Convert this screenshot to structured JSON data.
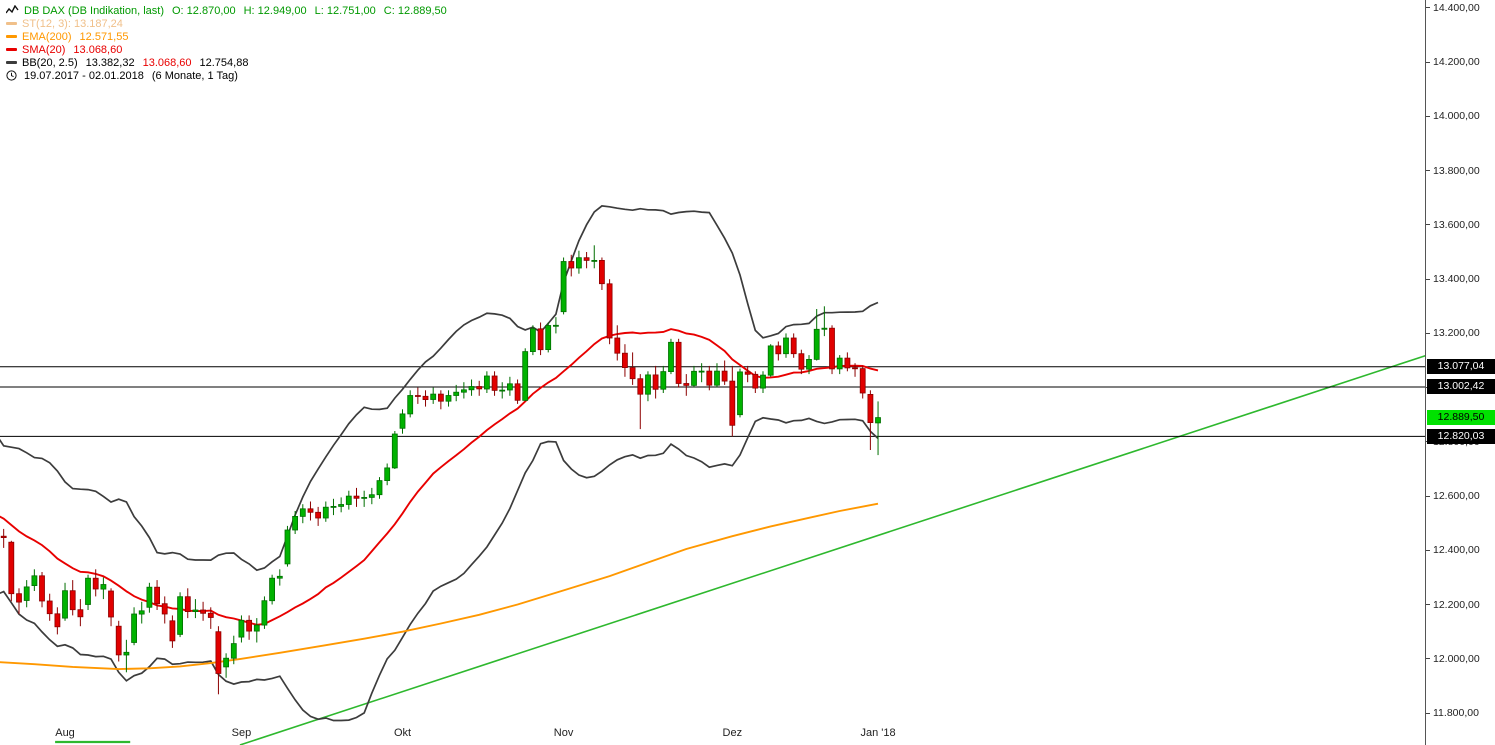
{
  "legend": {
    "instrument": "DB DAX (DB Indikation, last)",
    "open": "O: 12.870,00",
    "high": "H: 12.949,00",
    "low": "L: 12.751,00",
    "close": "C: 12.889,50",
    "st": "ST(12, 3): 13.187,24",
    "ema_name": "EMA(200)",
    "ema_value": "12.571,55",
    "sma_name": "SMA(20)",
    "sma_value": "13.068,60",
    "bb_name": "BB(20, 2.5)",
    "bb_upper": "13.382,32",
    "bb_middle": "13.068,60",
    "bb_lower": "12.754,88",
    "period": "19.07.2017 - 02.01.2018",
    "period_detail": "(6 Monate, 1 Tag)"
  },
  "axis": {
    "y_ticks": [
      {
        "value": 14400,
        "label": "14.400,00"
      },
      {
        "value": 14200,
        "label": "14.200,00"
      },
      {
        "value": 14000,
        "label": "14.000,00"
      },
      {
        "value": 13800,
        "label": "13.800,00"
      },
      {
        "value": 13600,
        "label": "13.600,00"
      },
      {
        "value": 13400,
        "label": "13.400,00"
      },
      {
        "value": 13200,
        "label": "13.200,00"
      },
      {
        "value": 13000,
        "label": "13.000,00"
      },
      {
        "value": 12800,
        "label": "12.800,00"
      },
      {
        "value": 12600,
        "label": "12.600,00"
      },
      {
        "value": 12400,
        "label": "12.400,00"
      },
      {
        "value": 12200,
        "label": "12.200,00"
      },
      {
        "value": 12000,
        "label": "12.000,00"
      },
      {
        "value": 11800,
        "label": "11.800,00"
      }
    ],
    "x_ticks": [
      {
        "i": 9,
        "label": "Aug"
      },
      {
        "i": 32,
        "label": "Sep"
      },
      {
        "i": 53,
        "label": "Okt"
      },
      {
        "i": 74,
        "label": "Nov"
      },
      {
        "i": 96,
        "label": "Dez"
      },
      {
        "i": 115,
        "label": "Jan '18"
      }
    ],
    "price_labels": [
      {
        "value": 13077.04,
        "label": "13.077,04",
        "type": "line"
      },
      {
        "value": 13002.42,
        "label": "13.002,42",
        "type": "line"
      },
      {
        "value": 12889.5,
        "label": "12.889,50",
        "type": "last"
      },
      {
        "value": 12820.03,
        "label": "12.820,03",
        "type": "line"
      }
    ]
  },
  "chart_data": {
    "type": "candlestick",
    "instrument": "DB DAX (DB Indikation)",
    "period": "19.07.2017 - 02.01.2018 (6 Monate, 1 Tag)",
    "ylim": [
      11682,
      14429.5
    ],
    "last_price": 12889.5,
    "hlines": [
      13077.04,
      13002.42,
      12820.03
    ],
    "trendline": {
      "points": [
        [
          31.8,
          11682
        ],
        [
          186.6,
          13120
        ]
      ]
    },
    "trend_segment": {
      "points": [
        [
          7.7,
          11693
        ],
        [
          17.5,
          11693
        ]
      ]
    },
    "ema200_points": [
      [
        0,
        11988
      ],
      [
        5,
        11980
      ],
      [
        10,
        11970
      ],
      [
        16,
        11962
      ],
      [
        20,
        11965
      ],
      [
        24,
        11972
      ],
      [
        28,
        11984
      ],
      [
        32,
        12000
      ],
      [
        37,
        12022
      ],
      [
        43,
        12050
      ],
      [
        48,
        12074
      ],
      [
        53,
        12100
      ],
      [
        58,
        12130
      ],
      [
        63,
        12162
      ],
      [
        68,
        12200
      ],
      [
        74,
        12252
      ],
      [
        80,
        12305
      ],
      [
        85,
        12355
      ],
      [
        90,
        12405
      ],
      [
        96,
        12452
      ],
      [
        101,
        12488
      ],
      [
        106,
        12520
      ],
      [
        110,
        12545
      ],
      [
        115,
        12572
      ]
    ],
    "indicator_warmup_closes": [
      12820,
      12760,
      12700,
      12680,
      12640,
      12600,
      12560,
      12620,
      12660,
      12600,
      12540,
      12420,
      12330,
      12380,
      12450,
      12470,
      12390,
      12440,
      12520,
      12430
    ],
    "candles": [
      [
        12490,
        12510,
        12430,
        12452
      ],
      [
        12452,
        12479,
        12409,
        12447
      ],
      [
        12430,
        12435,
        12212,
        12240
      ],
      [
        12240,
        12260,
        12165,
        12209
      ],
      [
        12215,
        12290,
        12190,
        12265
      ],
      [
        12270,
        12330,
        12250,
        12306
      ],
      [
        12306,
        12320,
        12190,
        12213
      ],
      [
        12213,
        12240,
        12140,
        12166
      ],
      [
        12166,
        12190,
        12090,
        12118
      ],
      [
        12150,
        12280,
        12140,
        12251
      ],
      [
        12251,
        12290,
        12160,
        12181
      ],
      [
        12181,
        12220,
        12120,
        12155
      ],
      [
        12200,
        12310,
        12180,
        12297
      ],
      [
        12297,
        12330,
        12230,
        12257
      ],
      [
        12257,
        12300,
        12220,
        12274
      ],
      [
        12250,
        12260,
        12120,
        12154
      ],
      [
        12120,
        12140,
        11990,
        12014
      ],
      [
        12014,
        12070,
        11950,
        12024
      ],
      [
        12060,
        12190,
        12050,
        12165
      ],
      [
        12165,
        12210,
        12130,
        12177
      ],
      [
        12190,
        12280,
        12170,
        12264
      ],
      [
        12264,
        12290,
        12180,
        12203
      ],
      [
        12203,
        12230,
        12130,
        12165
      ],
      [
        12140,
        12160,
        12040,
        12066
      ],
      [
        12090,
        12245,
        12080,
        12229
      ],
      [
        12229,
        12260,
        12150,
        12174
      ],
      [
        12174,
        12220,
        12150,
        12180
      ],
      [
        12180,
        12210,
        12140,
        12168
      ],
      [
        12168,
        12190,
        12110,
        12152
      ],
      [
        12100,
        12120,
        11869,
        11946
      ],
      [
        11970,
        12020,
        11930,
        12002
      ],
      [
        12002,
        12085,
        11980,
        12056
      ],
      [
        12080,
        12160,
        12060,
        12142
      ],
      [
        12142,
        12160,
        12070,
        12102
      ],
      [
        12102,
        12150,
        12060,
        12124
      ],
      [
        12124,
        12230,
        12110,
        12214
      ],
      [
        12214,
        12310,
        12200,
        12297
      ],
      [
        12297,
        12330,
        12270,
        12304
      ],
      [
        12350,
        12490,
        12340,
        12475
      ],
      [
        12475,
        12545,
        12460,
        12525
      ],
      [
        12525,
        12570,
        12500,
        12553
      ],
      [
        12553,
        12580,
        12510,
        12540
      ],
      [
        12540,
        12560,
        12490,
        12519
      ],
      [
        12519,
        12580,
        12505,
        12559
      ],
      [
        12559,
        12590,
        12530,
        12562
      ],
      [
        12562,
        12595,
        12540,
        12569
      ],
      [
        12569,
        12620,
        12550,
        12600
      ],
      [
        12600,
        12630,
        12560,
        12592
      ],
      [
        12592,
        12620,
        12560,
        12595
      ],
      [
        12595,
        12630,
        12570,
        12605
      ],
      [
        12605,
        12670,
        12590,
        12657
      ],
      [
        12657,
        12720,
        12640,
        12704
      ],
      [
        12704,
        12840,
        12700,
        12829
      ],
      [
        12850,
        12920,
        12830,
        12903
      ],
      [
        12903,
        12990,
        12890,
        12971
      ],
      [
        12971,
        13000,
        12940,
        12968
      ],
      [
        12968,
        12990,
        12930,
        12956
      ],
      [
        12956,
        13000,
        12940,
        12976
      ],
      [
        12976,
        12990,
        12920,
        12950
      ],
      [
        12950,
        12990,
        12930,
        12971
      ],
      [
        12971,
        13010,
        12950,
        12983
      ],
      [
        12983,
        13020,
        12960,
        12992
      ],
      [
        12992,
        13030,
        12970,
        13004
      ],
      [
        13004,
        13025,
        12970,
        12995
      ],
      [
        12995,
        13060,
        12980,
        13043
      ],
      [
        13043,
        13060,
        12970,
        12990
      ],
      [
        12990,
        13020,
        12960,
        12991
      ],
      [
        12991,
        13040,
        12970,
        13014
      ],
      [
        13014,
        13030,
        12940,
        12953
      ],
      [
        12953,
        13145,
        12950,
        13133
      ],
      [
        13133,
        13230,
        13120,
        13217
      ],
      [
        13217,
        13240,
        13120,
        13140
      ],
      [
        13140,
        13240,
        13130,
        13229
      ],
      [
        13229,
        13260,
        13200,
        13230
      ],
      [
        13280,
        13480,
        13270,
        13465
      ],
      [
        13465,
        13490,
        13410,
        13441
      ],
      [
        13441,
        13505,
        13420,
        13479
      ],
      [
        13479,
        13500,
        13440,
        13469
      ],
      [
        13469,
        13525,
        13440,
        13469
      ],
      [
        13469,
        13480,
        13360,
        13383
      ],
      [
        13383,
        13400,
        13160,
        13183
      ],
      [
        13183,
        13230,
        13100,
        13127
      ],
      [
        13127,
        13160,
        13040,
        13074
      ],
      [
        13074,
        13130,
        13010,
        13033
      ],
      [
        13033,
        13050,
        12847,
        12976
      ],
      [
        12976,
        13060,
        12950,
        13047
      ],
      [
        13047,
        13080,
        12960,
        12994
      ],
      [
        12994,
        13080,
        12980,
        13059
      ],
      [
        13059,
        13180,
        13050,
        13167
      ],
      [
        13167,
        13180,
        13000,
        13015
      ],
      [
        13015,
        13050,
        12970,
        13008
      ],
      [
        13008,
        13080,
        13000,
        13060
      ],
      [
        13060,
        13090,
        13020,
        13061
      ],
      [
        13061,
        13080,
        12990,
        13009
      ],
      [
        13009,
        13090,
        13000,
        13061
      ],
      [
        13061,
        13100,
        13010,
        13024
      ],
      [
        13024,
        13080,
        12820,
        12861
      ],
      [
        12900,
        13070,
        12890,
        13058
      ],
      [
        13058,
        13080,
        13020,
        13049
      ],
      [
        13049,
        13060,
        12980,
        12998
      ],
      [
        12998,
        13060,
        12980,
        13046
      ],
      [
        13046,
        13160,
        13040,
        13154
      ],
      [
        13154,
        13170,
        13100,
        13125
      ],
      [
        13125,
        13200,
        13110,
        13183
      ],
      [
        13183,
        13200,
        13110,
        13125
      ],
      [
        13125,
        13140,
        13050,
        13068
      ],
      [
        13068,
        13120,
        13050,
        13104
      ],
      [
        13104,
        13290,
        13100,
        13215
      ],
      [
        13215,
        13300,
        13190,
        13219
      ],
      [
        13219,
        13230,
        13050,
        13069
      ],
      [
        13069,
        13120,
        13050,
        13109
      ],
      [
        13109,
        13130,
        13060,
        13073
      ],
      [
        13073,
        13090,
        13040,
        13070
      ],
      [
        13070,
        13080,
        12960,
        12980
      ],
      [
        12975,
        12990,
        12770,
        12871
      ],
      [
        12870,
        12949,
        12751,
        12889.5
      ]
    ]
  },
  "colors": {
    "up_fill": "#00b200",
    "up_stroke": "#006e00",
    "down_fill": "#e10000",
    "down_stroke": "#8c0000",
    "trend_line": "#2eb82e",
    "bollinger": "#3c3c3c",
    "sma": "#e80000",
    "ema": "#ff9800",
    "st_muted": "#f0c08a",
    "legend_instrument": "#009900",
    "hline": "#000000",
    "last_price_bg": "#00e100",
    "last_price_text": "#000000",
    "badge_bg": "#000000",
    "badge_text": "#ffffff",
    "axis_text": "#222222"
  }
}
